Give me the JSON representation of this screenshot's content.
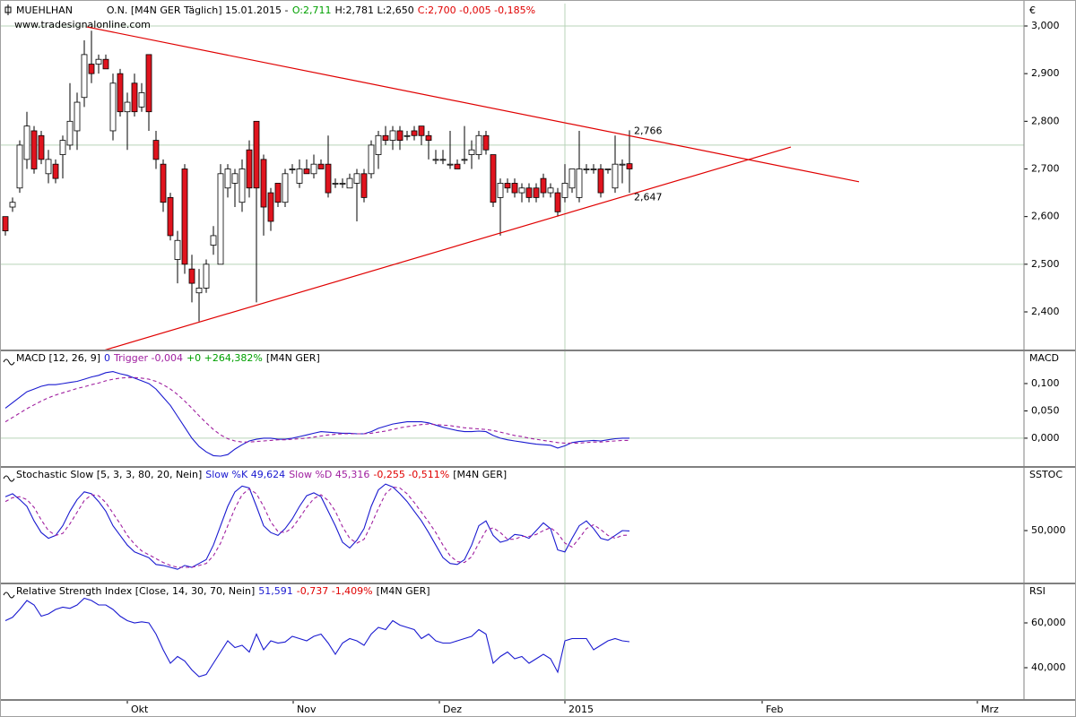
{
  "chart_data": [
    {
      "type": "candlestick",
      "legend_texts": [
        {
          "text": "MUEHLHAN",
          "color": "#000000"
        },
        {
          "text": "O.N. [M4N GER  Täglich] 15.01.2015 -",
          "color": "#000000"
        },
        {
          "text": "O:2,711",
          "color": "#00a000"
        },
        {
          "text": "H:2,781 L:2,650",
          "color": "#000000"
        },
        {
          "text": "C:2,700 -0,005 -0,185%",
          "color": "#e00000"
        }
      ],
      "source": "www.tradesignalonline.com",
      "y_label": "€",
      "xlim": [
        -0.75,
        142
      ],
      "xgrid": [
        78
      ],
      "ylim": [
        2.321,
        3.047
      ],
      "yticks": [
        {
          "value": 3.0,
          "label": "3,000"
        },
        {
          "value": 2.9,
          "label": "2,900"
        },
        {
          "value": 2.8,
          "label": "2,800"
        },
        {
          "value": 2.7,
          "label": "2,700"
        },
        {
          "value": 2.6,
          "label": "2,600"
        },
        {
          "value": 2.5,
          "label": "2,500"
        },
        {
          "value": 2.4,
          "label": "2,400"
        }
      ],
      "grid_lines": [
        3.0,
        2.75,
        2.5
      ],
      "up_color": "#ffffff",
      "down_color": "#e0141e",
      "open": [
        2.6,
        2.62,
        2.66,
        2.72,
        2.78,
        2.77,
        2.69,
        2.71,
        2.73,
        2.75,
        2.78,
        2.85,
        2.92,
        2.92,
        2.93,
        2.78,
        2.9,
        2.82,
        2.88,
        2.83,
        2.94,
        2.76,
        2.71,
        2.64,
        2.51,
        2.7,
        2.49,
        2.44,
        2.45,
        2.54,
        2.5,
        2.66,
        2.67,
        2.63,
        2.74,
        2.8,
        2.72,
        2.65,
        2.67,
        2.63,
        2.7,
        2.67,
        2.7,
        2.69,
        2.71,
        2.71,
        2.67,
        2.67,
        2.66,
        2.67,
        2.69,
        2.69,
        2.73,
        2.77,
        2.76,
        2.78,
        2.77,
        2.78,
        2.79,
        2.77,
        2.72,
        2.72,
        2.71,
        2.71,
        2.72,
        2.73,
        2.73,
        2.77,
        2.73,
        2.64,
        2.67,
        2.67,
        2.65,
        2.66,
        2.66,
        2.68,
        2.65,
        2.65,
        2.64,
        2.66,
        2.64,
        2.7,
        2.7,
        2.7,
        2.7,
        2.66,
        2.71,
        2.711
      ],
      "high": [
        2.6,
        2.64,
        2.76,
        2.82,
        2.79,
        2.78,
        2.74,
        2.72,
        2.77,
        2.88,
        2.86,
        2.97,
        2.99,
        2.94,
        2.94,
        2.9,
        2.91,
        2.86,
        2.9,
        2.88,
        2.94,
        2.78,
        2.72,
        2.65,
        2.57,
        2.71,
        2.52,
        2.49,
        2.51,
        2.58,
        2.71,
        2.71,
        2.7,
        2.72,
        2.76,
        2.8,
        2.73,
        2.66,
        2.67,
        2.7,
        2.71,
        2.72,
        2.72,
        2.73,
        2.72,
        2.77,
        2.68,
        2.68,
        2.69,
        2.7,
        2.7,
        2.76,
        2.78,
        2.79,
        2.79,
        2.79,
        2.78,
        2.79,
        2.79,
        2.78,
        2.74,
        2.74,
        2.78,
        2.72,
        2.79,
        2.76,
        2.78,
        2.78,
        2.73,
        2.68,
        2.68,
        2.68,
        2.67,
        2.67,
        2.67,
        2.69,
        2.67,
        2.66,
        2.71,
        2.7,
        2.78,
        2.71,
        2.71,
        2.71,
        2.7,
        2.77,
        2.72,
        2.781
      ],
      "low": [
        2.56,
        2.61,
        2.65,
        2.7,
        2.69,
        2.71,
        2.67,
        2.67,
        2.68,
        2.74,
        2.74,
        2.83,
        2.88,
        2.9,
        2.91,
        2.76,
        2.81,
        2.74,
        2.81,
        2.82,
        2.78,
        2.7,
        2.61,
        2.55,
        2.46,
        2.48,
        2.42,
        2.38,
        2.44,
        2.52,
        2.5,
        2.64,
        2.62,
        2.61,
        2.64,
        2.42,
        2.56,
        2.57,
        2.62,
        2.62,
        2.69,
        2.66,
        2.69,
        2.68,
        2.7,
        2.64,
        2.66,
        2.66,
        2.66,
        2.59,
        2.63,
        2.68,
        2.7,
        2.75,
        2.74,
        2.74,
        2.76,
        2.76,
        2.75,
        2.72,
        2.71,
        2.71,
        2.7,
        2.7,
        2.71,
        2.7,
        2.72,
        2.73,
        2.62,
        2.56,
        2.65,
        2.64,
        2.63,
        2.63,
        2.63,
        2.64,
        2.64,
        2.6,
        2.63,
        2.65,
        2.63,
        2.69,
        2.69,
        2.64,
        2.69,
        2.65,
        2.67,
        2.65
      ],
      "close": [
        2.57,
        2.63,
        2.75,
        2.79,
        2.7,
        2.72,
        2.72,
        2.68,
        2.76,
        2.8,
        2.84,
        2.94,
        2.9,
        2.93,
        2.91,
        2.88,
        2.82,
        2.84,
        2.82,
        2.86,
        2.82,
        2.72,
        2.63,
        2.56,
        2.55,
        2.5,
        2.46,
        2.45,
        2.5,
        2.56,
        2.69,
        2.7,
        2.69,
        2.7,
        2.66,
        2.66,
        2.62,
        2.59,
        2.63,
        2.69,
        2.7,
        2.7,
        2.69,
        2.71,
        2.7,
        2.65,
        2.67,
        2.67,
        2.68,
        2.69,
        2.64,
        2.75,
        2.77,
        2.76,
        2.78,
        2.76,
        2.77,
        2.77,
        2.77,
        2.76,
        2.72,
        2.72,
        2.71,
        2.7,
        2.72,
        2.74,
        2.77,
        2.74,
        2.63,
        2.67,
        2.66,
        2.65,
        2.66,
        2.64,
        2.64,
        2.65,
        2.66,
        2.61,
        2.67,
        2.7,
        2.7,
        2.7,
        2.7,
        2.65,
        2.7,
        2.71,
        2.71,
        2.7
      ],
      "trendlines": [
        {
          "x": [
            11.375,
            119
          ],
          "y": [
            2.998,
            2.673
          ],
          "color": "#e00000"
        },
        {
          "x": [
            13.875,
            109.5
          ],
          "y": [
            2.32,
            2.746
          ],
          "color": "#e00000"
        }
      ],
      "annotations": [
        {
          "label": "2,766",
          "value": 2.766,
          "x": 87.5
        },
        {
          "label": "2,647",
          "value": 2.647,
          "x": 87.5
        }
      ]
    },
    {
      "type": "line",
      "legend_texts": [
        {
          "text": "MACD [12, 26, 9]",
          "color": "#000000"
        },
        {
          "text": "0",
          "color": "#1a1ad0"
        },
        {
          "text": "Trigger -0,004",
          "color": "#a020a0"
        },
        {
          "text": "+0 +264,382%",
          "color": "#00a000"
        },
        {
          "text": "[M4N GER]",
          "color": "#000000"
        }
      ],
      "y_label": "MACD",
      "xlim": [
        -0.75,
        142
      ],
      "ylim": [
        -0.051,
        0.159
      ],
      "yticks": [
        {
          "value": 0.1,
          "label": "0,100"
        },
        {
          "value": 0.05,
          "label": "0,050"
        },
        {
          "value": 0,
          "label": "0,000"
        }
      ],
      "grid_lines": [
        0
      ],
      "series": [
        {
          "color": "#1a1ad0",
          "dashed": false,
          "values": [
            0.055,
            0.065,
            0.075,
            0.085,
            0.09,
            0.095,
            0.098,
            0.098,
            0.1,
            0.102,
            0.104,
            0.108,
            0.112,
            0.115,
            0.12,
            0.122,
            0.118,
            0.115,
            0.11,
            0.105,
            0.1,
            0.09,
            0.075,
            0.06,
            0.04,
            0.02,
            0.0,
            -0.015,
            -0.025,
            -0.032,
            -0.033,
            -0.03,
            -0.02,
            -0.012,
            -0.005,
            -0.002,
            0.0,
            0.0,
            -0.002,
            -0.002,
            0.0,
            0.003,
            0.006,
            0.009,
            0.012,
            0.011,
            0.01,
            0.009,
            0.009,
            0.008,
            0.008,
            0.012,
            0.018,
            0.022,
            0.026,
            0.028,
            0.03,
            0.03,
            0.03,
            0.028,
            0.024,
            0.02,
            0.017,
            0.014,
            0.012,
            0.012,
            0.013,
            0.012,
            0.005,
            0.0,
            -0.003,
            -0.005,
            -0.007,
            -0.009,
            -0.011,
            -0.012,
            -0.013,
            -0.018,
            -0.014,
            -0.008,
            -0.006,
            -0.005,
            -0.004,
            -0.005,
            -0.003,
            -0.001,
            0.0,
            0.0
          ]
        },
        {
          "color": "#a020a0",
          "dashed": true,
          "values": [
            0.03,
            0.038,
            0.046,
            0.054,
            0.061,
            0.068,
            0.074,
            0.079,
            0.083,
            0.087,
            0.091,
            0.094,
            0.098,
            0.101,
            0.105,
            0.108,
            0.11,
            0.111,
            0.111,
            0.11,
            0.108,
            0.104,
            0.098,
            0.09,
            0.08,
            0.068,
            0.055,
            0.041,
            0.028,
            0.016,
            0.006,
            -0.001,
            -0.005,
            -0.007,
            -0.007,
            -0.006,
            -0.005,
            -0.004,
            -0.003,
            -0.003,
            -0.002,
            -0.001,
            0.0,
            0.002,
            0.004,
            0.006,
            0.007,
            0.008,
            0.008,
            0.008,
            0.008,
            0.009,
            0.011,
            0.013,
            0.016,
            0.019,
            0.021,
            0.023,
            0.025,
            0.026,
            0.025,
            0.024,
            0.023,
            0.021,
            0.019,
            0.018,
            0.017,
            0.016,
            0.014,
            0.011,
            0.008,
            0.005,
            0.003,
            0.0,
            -0.002,
            -0.004,
            -0.006,
            -0.008,
            -0.009,
            -0.009,
            -0.009,
            -0.008,
            -0.007,
            -0.007,
            -0.006,
            -0.005,
            -0.004,
            -0.004
          ]
        }
      ]
    },
    {
      "type": "line",
      "legend_texts": [
        {
          "text": "Stochastic Slow [5, 3, 3, 80, 20, Nein]",
          "color": "#000000"
        },
        {
          "text": "Slow %K 49,624",
          "color": "#1a1ad0"
        },
        {
          "text": "Slow %D 45,316",
          "color": "#a020a0"
        },
        {
          "text": "-0,255 -0,511%",
          "color": "#e00000"
        },
        {
          "text": "[M4N GER]",
          "color": "#000000"
        }
      ],
      "y_label": "SSTOC",
      "xlim": [
        -0.75,
        142
      ],
      "ylim": [
        -3.7,
        114.8
      ],
      "yticks": [
        {
          "value": 50,
          "label": "50,000"
        }
      ],
      "series": [
        {
          "color": "#1a1ad0",
          "dashed": false,
          "values": [
            85,
            88,
            82,
            75,
            60,
            48,
            42,
            45,
            55,
            70,
            82,
            90,
            88,
            80,
            70,
            55,
            45,
            35,
            28,
            25,
            22,
            15,
            14,
            12,
            10,
            14,
            12,
            16,
            20,
            35,
            55,
            75,
            90,
            96,
            94,
            75,
            55,
            48,
            45,
            52,
            62,
            75,
            86,
            89,
            85,
            70,
            55,
            38,
            32,
            40,
            52,
            75,
            92,
            98,
            95,
            88,
            80,
            70,
            60,
            48,
            35,
            22,
            16,
            15,
            20,
            35,
            55,
            60,
            45,
            38,
            40,
            46,
            45,
            42,
            50,
            58,
            52,
            30,
            28,
            42,
            55,
            60,
            52,
            42,
            40,
            45,
            50,
            49.624
          ]
        },
        {
          "color": "#a020a0",
          "dashed": true,
          "values": [
            80,
            84,
            85,
            82,
            74,
            61,
            50,
            45,
            47,
            57,
            69,
            81,
            87,
            86,
            79,
            68,
            57,
            45,
            36,
            29,
            25,
            21,
            17,
            14,
            12,
            12,
            12,
            14,
            16,
            24,
            37,
            55,
            73,
            87,
            93,
            88,
            75,
            59,
            49,
            48,
            53,
            63,
            74,
            83,
            87,
            81,
            70,
            54,
            42,
            37,
            41,
            56,
            73,
            88,
            95,
            94,
            88,
            79,
            69,
            59,
            48,
            35,
            24,
            18,
            17,
            23,
            37,
            50,
            53,
            48,
            41,
            41,
            44,
            44,
            46,
            50,
            53,
            47,
            37,
            33,
            42,
            52,
            56,
            51,
            45,
            42,
            45,
            45.316
          ]
        }
      ]
    },
    {
      "type": "line",
      "legend_texts": [
        {
          "text": "Relative Strength Index [Close, 14, 30, 70, Nein]",
          "color": "#000000"
        },
        {
          "text": "51,591",
          "color": "#1a1ad0"
        },
        {
          "text": "-0,737 -1,409%",
          "color": "#e00000"
        },
        {
          "text": "[M4N GER]",
          "color": "#000000"
        }
      ],
      "y_label": "RSI",
      "xlim": [
        -0.75,
        142
      ],
      "ylim": [
        26,
        77.2
      ],
      "yticks": [
        {
          "value": 60,
          "label": "60,000"
        },
        {
          "value": 40,
          "label": "40,000"
        }
      ],
      "xticks": [
        {
          "value": 17,
          "label": "Okt"
        },
        {
          "value": 40.125,
          "label": "Nov"
        },
        {
          "value": 60.5,
          "label": "Dez"
        },
        {
          "value": 78,
          "label": "2015"
        },
        {
          "value": 105.5,
          "label": "Feb"
        },
        {
          "value": 135.5,
          "label": "Mrz"
        }
      ],
      "series": [
        {
          "color": "#1a1ad0",
          "dashed": false,
          "values": [
            61,
            62.5,
            66,
            70,
            68,
            63,
            64,
            66,
            67,
            66.5,
            68,
            71,
            70,
            68,
            68,
            66,
            63,
            61,
            60,
            60.5,
            60,
            55,
            48,
            42,
            45,
            43,
            39,
            36,
            37,
            42,
            47,
            52,
            49,
            50,
            47,
            55,
            48,
            52,
            51,
            51.5,
            54,
            53,
            52,
            54,
            55,
            51,
            46,
            51,
            53,
            52,
            50,
            55,
            58,
            57,
            61,
            59,
            58,
            57,
            53,
            55,
            52,
            51,
            51,
            52,
            53,
            54,
            57,
            55,
            42,
            45,
            47,
            44,
            45,
            42,
            44,
            46,
            44,
            38,
            52,
            53,
            53,
            53,
            48,
            50,
            52,
            53,
            52,
            51.591
          ]
        }
      ]
    }
  ]
}
